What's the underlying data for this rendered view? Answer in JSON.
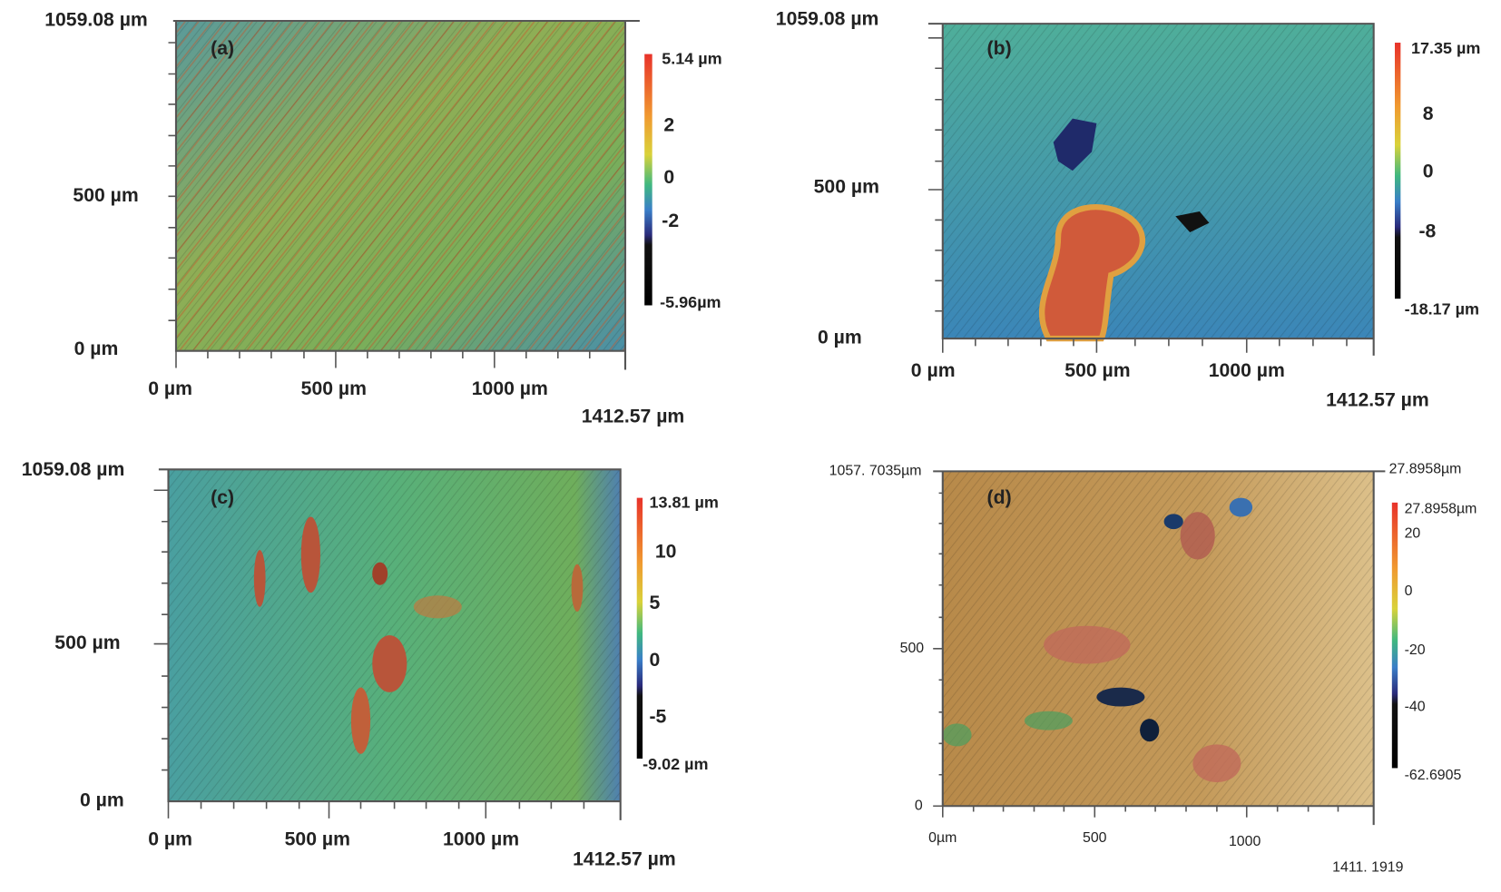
{
  "panels": [
    {
      "label": "(a)",
      "y_top": "1059.08 µm",
      "y_mid": "500 µm",
      "y_bottom": "0 µm",
      "x_ticks": [
        "0 µm",
        "500 µm",
        "1000 µm"
      ],
      "x_end": "1412.57 µm",
      "colorbar": [
        "5.14 µm",
        "2",
        "0",
        "-2",
        "-5.96µm"
      ]
    },
    {
      "label": "(b)",
      "y_top": "1059.08 µm",
      "y_mid": "500 µm",
      "y_bottom": "0 µm",
      "x_ticks": [
        "0 µm",
        "500 µm",
        "1000 µm"
      ],
      "x_end": "1412.57 µm",
      "colorbar": [
        "17.35 µm",
        "8",
        "0",
        "-8",
        "-18.17 µm"
      ]
    },
    {
      "label": "(c)",
      "y_top": "1059.08 µm",
      "y_mid": "500 µm",
      "y_bottom": "0 µm",
      "x_ticks": [
        "0 µm",
        "500 µm",
        "1000 µm"
      ],
      "x_end": "1412.57 µm",
      "colorbar": [
        "13.81 µm",
        "10",
        "5",
        "0",
        "-5",
        "-9.02 µm"
      ]
    },
    {
      "label": "(d)",
      "y_top": "1057. 7035µm",
      "y_mid": "500",
      "y_bottom": "0",
      "x_ticks": [
        "0µm",
        "500",
        "1000"
      ],
      "x_end": "1411. 1919",
      "top_right": "27.8958µm",
      "colorbar": [
        "27.8958µm",
        "20",
        "0",
        "-20",
        "-40",
        "-62.6905"
      ]
    }
  ]
}
